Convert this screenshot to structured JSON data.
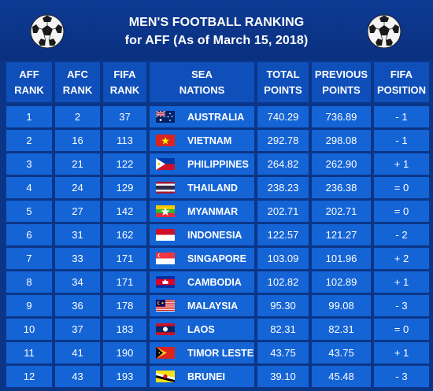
{
  "title_line1": "MEN'S FOOTBALL RANKING",
  "title_line2": "for AFF (As of March 15, 2018)",
  "columns": [
    {
      "line1": "AFF",
      "line2": "RANK"
    },
    {
      "line1": "AFC",
      "line2": "RANK"
    },
    {
      "line1": "FIFA",
      "line2": "RANK"
    },
    {
      "line1": "SEA",
      "line2": "NATIONS"
    },
    {
      "line1": "TOTAL",
      "line2": "POINTS"
    },
    {
      "line1": "PREVIOUS",
      "line2": "POINTS"
    },
    {
      "line1": "FIFA",
      "line2": "POSITION"
    }
  ],
  "rows": [
    {
      "aff": "1",
      "afc": "2",
      "fifa": "37",
      "flag": "australia-flag",
      "nation": "AUSTRALIA",
      "total": "740.29",
      "prev": "736.89",
      "pos": "- 1"
    },
    {
      "aff": "2",
      "afc": "16",
      "fifa": "113",
      "flag": "vietnam-flag",
      "nation": "VIETNAM",
      "total": "292.78",
      "prev": "298.08",
      "pos": "- 1"
    },
    {
      "aff": "3",
      "afc": "21",
      "fifa": "122",
      "flag": "philippines-flag",
      "nation": "PHILIPPINES",
      "total": "264.82",
      "prev": "262.90",
      "pos": "+ 1"
    },
    {
      "aff": "4",
      "afc": "24",
      "fifa": "129",
      "flag": "thailand-flag",
      "nation": "THAILAND",
      "total": "238.23",
      "prev": "236.38",
      "pos": "= 0"
    },
    {
      "aff": "5",
      "afc": "27",
      "fifa": "142",
      "flag": "myanmar-flag",
      "nation": "MYANMAR",
      "total": "202.71",
      "prev": "202.71",
      "pos": "= 0"
    },
    {
      "aff": "6",
      "afc": "31",
      "fifa": "162",
      "flag": "indonesia-flag",
      "nation": "INDONESIA",
      "total": "122.57",
      "prev": "121.27",
      "pos": "- 2"
    },
    {
      "aff": "7",
      "afc": "33",
      "fifa": "171",
      "flag": "singapore-flag",
      "nation": "SINGAPORE",
      "total": "103.09",
      "prev": "101.96",
      "pos": "+ 2"
    },
    {
      "aff": "8",
      "afc": "34",
      "fifa": "171",
      "flag": "cambodia-flag",
      "nation": "CAMBODIA",
      "total": "102.82",
      "prev": "102.89",
      "pos": "+ 1"
    },
    {
      "aff": "9",
      "afc": "36",
      "fifa": "178",
      "flag": "malaysia-flag",
      "nation": "MALAYSIA",
      "total": "95.30",
      "prev": "99.08",
      "pos": "- 3"
    },
    {
      "aff": "10",
      "afc": "37",
      "fifa": "183",
      "flag": "laos-flag",
      "nation": "LAOS",
      "total": "82.31",
      "prev": "82.31",
      "pos": "= 0"
    },
    {
      "aff": "11",
      "afc": "41",
      "fifa": "190",
      "flag": "timor-leste-flag",
      "nation": "TIMOR LESTE",
      "total": "43.75",
      "prev": "43.75",
      "pos": "+ 1"
    },
    {
      "aff": "12",
      "afc": "43",
      "fifa": "193",
      "flag": "brunei-flag",
      "nation": "BRUNEI",
      "total": "39.10",
      "prev": "45.48",
      "pos": "- 3"
    }
  ],
  "colors": {
    "background": "#0b3586",
    "header_cell": "#0f4fba",
    "data_cell": "#1564d6",
    "text": "#ffffff"
  }
}
